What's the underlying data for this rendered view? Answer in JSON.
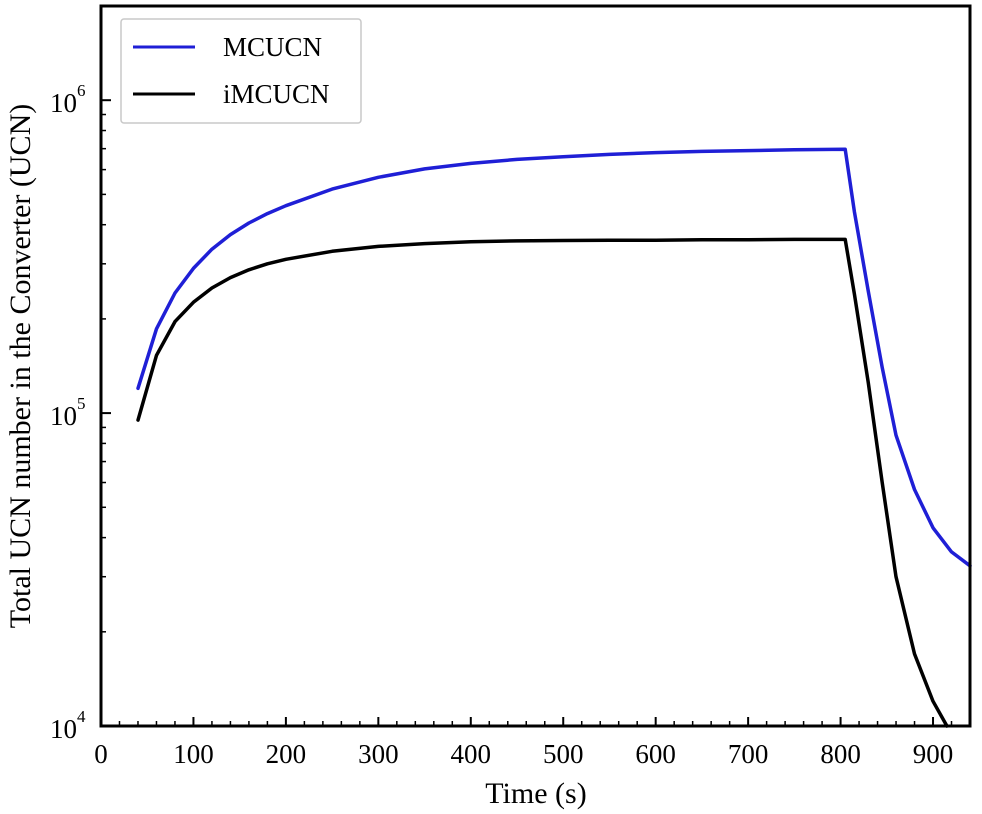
{
  "chart_data": {
    "type": "line",
    "title": "",
    "xlabel": "Time (s)",
    "ylabel": "Total UCN number in the Converter (UCN)",
    "xlim": [
      0,
      940
    ],
    "ylim": [
      10000,
      2000000
    ],
    "yscale": "log",
    "x_ticks": [
      {
        "value": 0,
        "label": "0"
      },
      {
        "value": 100,
        "label": "100"
      },
      {
        "value": 200,
        "label": "200"
      },
      {
        "value": 300,
        "label": "300"
      },
      {
        "value": 400,
        "label": "400"
      },
      {
        "value": 500,
        "label": "500"
      },
      {
        "value": 600,
        "label": "600"
      },
      {
        "value": 700,
        "label": "700"
      },
      {
        "value": 800,
        "label": "800"
      },
      {
        "value": 900,
        "label": "900"
      }
    ],
    "y_ticks": [
      {
        "value": 10000,
        "base": "10",
        "exp": "4"
      },
      {
        "value": 100000,
        "base": "10",
        "exp": "5"
      },
      {
        "value": 1000000,
        "base": "10",
        "exp": "6"
      }
    ],
    "legend_position": "top-left",
    "grid": false,
    "series": [
      {
        "name": "MCUCN",
        "color": "#1f1fd6",
        "x": [
          40,
          60,
          80,
          100,
          120,
          140,
          160,
          180,
          200,
          250,
          300,
          350,
          400,
          450,
          500,
          550,
          600,
          650,
          700,
          750,
          805,
          815,
          830,
          845,
          860,
          880,
          900,
          920,
          940
        ],
        "y": [
          120000,
          186000,
          242000,
          290000,
          334000,
          372000,
          405000,
          434000,
          460000,
          520000,
          567000,
          603000,
          628000,
          647000,
          660000,
          671000,
          680000,
          686000,
          690000,
          694000,
          697000,
          440000,
          245000,
          140000,
          85000,
          57000,
          43000,
          36000,
          32500
        ]
      },
      {
        "name": "iMCUCN",
        "color": "#000000",
        "x": [
          40,
          60,
          80,
          100,
          120,
          140,
          160,
          180,
          200,
          250,
          300,
          350,
          400,
          450,
          500,
          550,
          600,
          650,
          700,
          750,
          805,
          815,
          830,
          845,
          860,
          880,
          900,
          915
        ],
        "y": [
          95000,
          153000,
          196000,
          226000,
          251000,
          271000,
          287000,
          300000,
          310000,
          329000,
          341000,
          348000,
          353000,
          355000,
          356000,
          357000,
          357000,
          358000,
          358000,
          359000,
          359000,
          240000,
          125000,
          60000,
          30000,
          17000,
          12000,
          10000
        ]
      }
    ]
  }
}
